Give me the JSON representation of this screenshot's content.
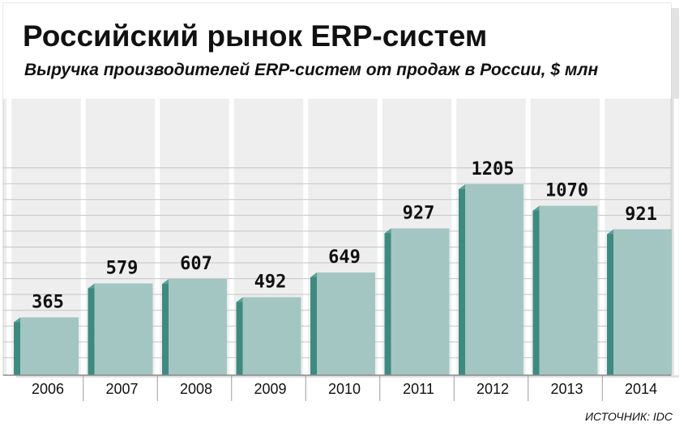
{
  "chart_data": {
    "type": "bar",
    "title": "Российский рынок ERP-систем",
    "subtitle": "Выручка производителей ERP-систем от продаж в России, $ млн",
    "categories": [
      "2006",
      "2007",
      "2008",
      "2009",
      "2010",
      "2011",
      "2012",
      "2013",
      "2014"
    ],
    "values": [
      365,
      579,
      607,
      492,
      649,
      927,
      1205,
      1070,
      921
    ],
    "value_labels": [
      "365",
      "579",
      "607",
      "492",
      "649",
      "927",
      "1205",
      "1070",
      "921"
    ],
    "xlabel": "",
    "ylabel": "",
    "ylim": [
      0,
      1400
    ],
    "grid": true,
    "source": "ИСТОЧНИК: IDC"
  },
  "colors": {
    "bar_face": "#a3c6c2",
    "bar_side": "#3f8a80",
    "bar_top": "#5e9f97",
    "grid": "#c4c4c4",
    "band": "#e6e6e6",
    "frame": "#cfcfcf"
  }
}
